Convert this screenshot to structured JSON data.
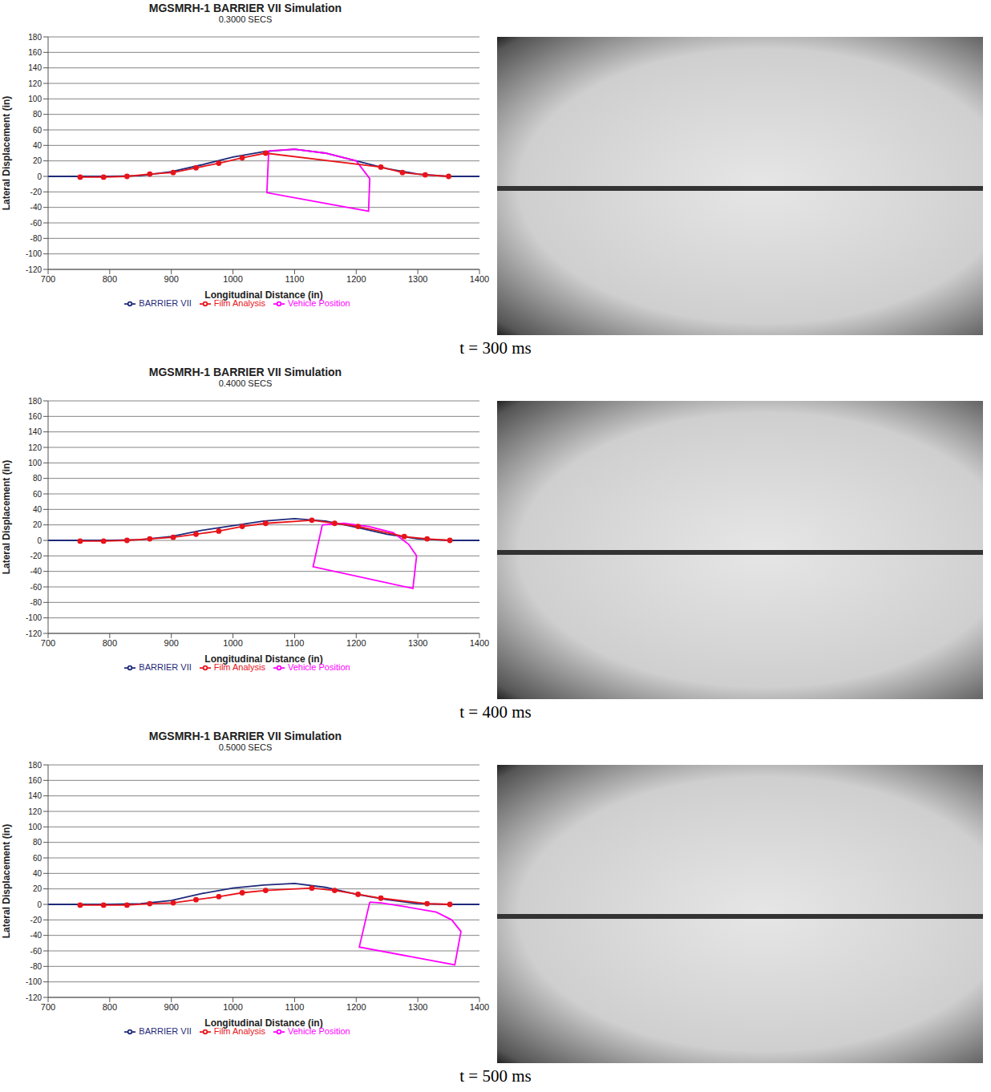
{
  "chart_data": [
    {
      "type": "line",
      "title": "MGSMRH-1 BARRIER VII Simulation",
      "subtitle": "0.3000 SECS",
      "x_label": "Longitudinal Distance (in)",
      "y_label": "Lateral Displacement (in)",
      "caption": "t = 300 ms",
      "xlim": [
        700,
        1400
      ],
      "ylim": [
        -120,
        180
      ],
      "xticks": [
        700,
        800,
        900,
        1000,
        1100,
        1200,
        1300,
        1400
      ],
      "yticks": [
        -120,
        -100,
        -80,
        -60,
        -40,
        -20,
        0,
        20,
        40,
        60,
        80,
        100,
        120,
        140,
        160,
        180
      ],
      "grid": true,
      "legend": "bottom",
      "series": [
        {
          "name": "BARRIER VII",
          "color": "#1f2a7a",
          "marker": "none",
          "line_style": "solid",
          "x": [
            700,
            750,
            800,
            850,
            900,
            950,
            1000,
            1050,
            1100,
            1150,
            1200,
            1250,
            1300,
            1350,
            1400
          ],
          "values": [
            0,
            0,
            0,
            1,
            6,
            15,
            25,
            32,
            35,
            30,
            20,
            10,
            3,
            0,
            0
          ]
        },
        {
          "name": "Vehicle Position",
          "color": "#ff00ff",
          "marker": "none",
          "line_style": "solid",
          "x": [
            1058,
            1055,
            1220,
            1222,
            1200,
            1150,
            1100,
            1058
          ],
          "values": [
            33,
            -21,
            -45,
            -3,
            20,
            30,
            35,
            33
          ]
        },
        {
          "name": "Film Analysis",
          "color": "#e8141b",
          "marker": "circle",
          "line_style": "solid",
          "x": [
            752,
            790,
            828,
            865,
            903,
            940,
            977,
            1015,
            1053,
            1240,
            1275,
            1312,
            1350
          ],
          "values": [
            -1,
            -1,
            0,
            3,
            5,
            11,
            17,
            24,
            30,
            12,
            5,
            2,
            0
          ]
        }
      ]
    },
    {
      "type": "line",
      "title": "MGSMRH-1 BARRIER VII Simulation",
      "subtitle": "0.4000 SECS",
      "x_label": "Longitudinal Distance (in)",
      "y_label": "Lateral Displacement (in)",
      "caption": "t = 400 ms",
      "xlim": [
        700,
        1400
      ],
      "ylim": [
        -120,
        180
      ],
      "xticks": [
        700,
        800,
        900,
        1000,
        1100,
        1200,
        1300,
        1400
      ],
      "yticks": [
        -120,
        -100,
        -80,
        -60,
        -40,
        -20,
        0,
        20,
        40,
        60,
        80,
        100,
        120,
        140,
        160,
        180
      ],
      "grid": true,
      "legend": "bottom",
      "series": [
        {
          "name": "BARRIER VII",
          "color": "#1f2a7a",
          "marker": "none",
          "line_style": "solid",
          "x": [
            700,
            750,
            800,
            850,
            900,
            950,
            1000,
            1050,
            1100,
            1150,
            1200,
            1250,
            1300,
            1350,
            1400
          ],
          "values": [
            0,
            0,
            0,
            1,
            5,
            13,
            19,
            25,
            28,
            25,
            17,
            8,
            2,
            0,
            0
          ]
        },
        {
          "name": "Vehicle Position",
          "color": "#ff00ff",
          "marker": "none",
          "line_style": "solid",
          "x": [
            1145,
            1130,
            1292,
            1298,
            1285,
            1260,
            1220,
            1180,
            1145
          ],
          "values": [
            20,
            -34,
            -62,
            -20,
            -5,
            10,
            18,
            22,
            20
          ]
        },
        {
          "name": "Film Analysis",
          "color": "#e8141b",
          "marker": "circle",
          "line_style": "solid",
          "x": [
            752,
            790,
            828,
            865,
            903,
            940,
            977,
            1015,
            1053,
            1128,
            1165,
            1203,
            1278,
            1315,
            1352
          ],
          "values": [
            -1,
            -1,
            0,
            2,
            4,
            8,
            12,
            18,
            22,
            26,
            22,
            18,
            5,
            2,
            0
          ]
        }
      ]
    },
    {
      "type": "line",
      "title": "MGSMRH-1 BARRIER VII Simulation",
      "subtitle": "0.5000 SECS",
      "x_label": "Longitudinal Distance (in)",
      "y_label": "Lateral Displacement (in)",
      "caption": "t = 500 ms",
      "xlim": [
        700,
        1400
      ],
      "ylim": [
        -120,
        180
      ],
      "xticks": [
        700,
        800,
        900,
        1000,
        1100,
        1200,
        1300,
        1400
      ],
      "yticks": [
        -120,
        -100,
        -80,
        -60,
        -40,
        -20,
        0,
        20,
        40,
        60,
        80,
        100,
        120,
        140,
        160,
        180
      ],
      "grid": true,
      "legend": "bottom",
      "series": [
        {
          "name": "BARRIER VII",
          "color": "#1f2a7a",
          "marker": "none",
          "line_style": "solid",
          "x": [
            700,
            750,
            800,
            850,
            900,
            950,
            1000,
            1050,
            1100,
            1150,
            1200,
            1250,
            1300,
            1350,
            1400
          ],
          "values": [
            0,
            0,
            0,
            1,
            5,
            14,
            21,
            25,
            27,
            22,
            13,
            6,
            1,
            0,
            0
          ]
        },
        {
          "name": "Vehicle Position",
          "color": "#ff00ff",
          "marker": "none",
          "line_style": "solid",
          "x": [
            1222,
            1205,
            1360,
            1370,
            1355,
            1330,
            1280,
            1240,
            1222
          ],
          "values": [
            3,
            -55,
            -78,
            -35,
            -20,
            -10,
            -3,
            2,
            3
          ]
        },
        {
          "name": "Film Analysis",
          "color": "#e8141b",
          "marker": "circle",
          "line_style": "solid",
          "x": [
            752,
            790,
            828,
            865,
            903,
            940,
            977,
            1015,
            1053,
            1128,
            1165,
            1203,
            1240,
            1315,
            1352
          ],
          "values": [
            -1,
            -1,
            -1,
            1,
            2,
            6,
            10,
            15,
            18,
            21,
            18,
            13,
            8,
            1,
            0
          ]
        }
      ]
    }
  ]
}
